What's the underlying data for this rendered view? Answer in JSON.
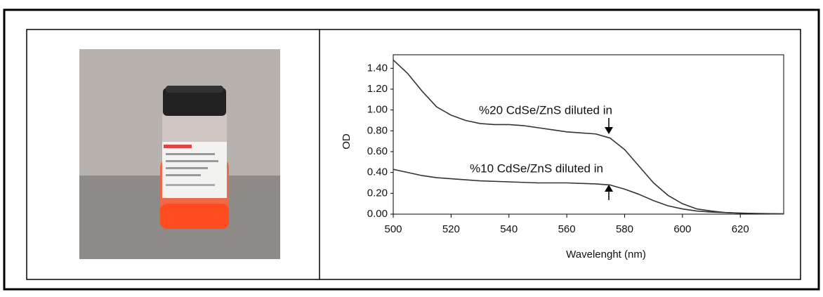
{
  "chart_data": {
    "type": "line",
    "xlabel": "Wavelenght (nm)",
    "ylabel": "OD",
    "xlim": [
      500,
      635
    ],
    "ylim": [
      0,
      1.53
    ],
    "xticks": [
      500,
      520,
      540,
      560,
      580,
      600,
      620
    ],
    "yticks": [
      {
        "value": 0,
        "label": "0.00"
      },
      {
        "value": 0.2,
        "label": "0.20"
      },
      {
        "value": 0.4,
        "label": "0.40"
      },
      {
        "value": 0.6,
        "label": "0.60"
      },
      {
        "value": 0.8,
        "label": "0.80"
      },
      {
        "value": 1.0,
        "label": "1.00"
      },
      {
        "value": 1.2,
        "label": "1.20"
      },
      {
        "value": 1.4,
        "label": "1.40"
      }
    ],
    "grid": false,
    "annotations": [
      "%20 CdSe/ZnS diluted in",
      "%10 CdSe/ZnS diluted in"
    ],
    "series": [
      {
        "color": "#333333",
        "x": [
          500,
          505,
          510,
          515,
          520,
          525,
          530,
          535,
          540,
          545,
          550,
          555,
          560,
          565,
          570,
          575,
          580,
          585,
          590,
          595,
          600,
          605,
          610,
          615,
          620,
          625,
          630,
          635
        ],
        "values": [
          1.48,
          1.35,
          1.18,
          1.03,
          0.95,
          0.9,
          0.87,
          0.86,
          0.86,
          0.85,
          0.83,
          0.81,
          0.79,
          0.78,
          0.77,
          0.73,
          0.62,
          0.46,
          0.3,
          0.18,
          0.1,
          0.05,
          0.03,
          0.015,
          0.01,
          0.005,
          0.003,
          0.002
        ]
      },
      {
        "color": "#333333",
        "x": [
          500,
          505,
          510,
          515,
          520,
          530,
          540,
          550,
          560,
          570,
          575,
          580,
          585,
          590,
          595,
          600,
          605,
          610,
          620,
          630,
          635
        ],
        "values": [
          0.43,
          0.4,
          0.37,
          0.35,
          0.34,
          0.32,
          0.31,
          0.3,
          0.3,
          0.29,
          0.28,
          0.24,
          0.19,
          0.13,
          0.08,
          0.05,
          0.03,
          0.02,
          0.01,
          0.005,
          0.003
        ]
      }
    ]
  }
}
